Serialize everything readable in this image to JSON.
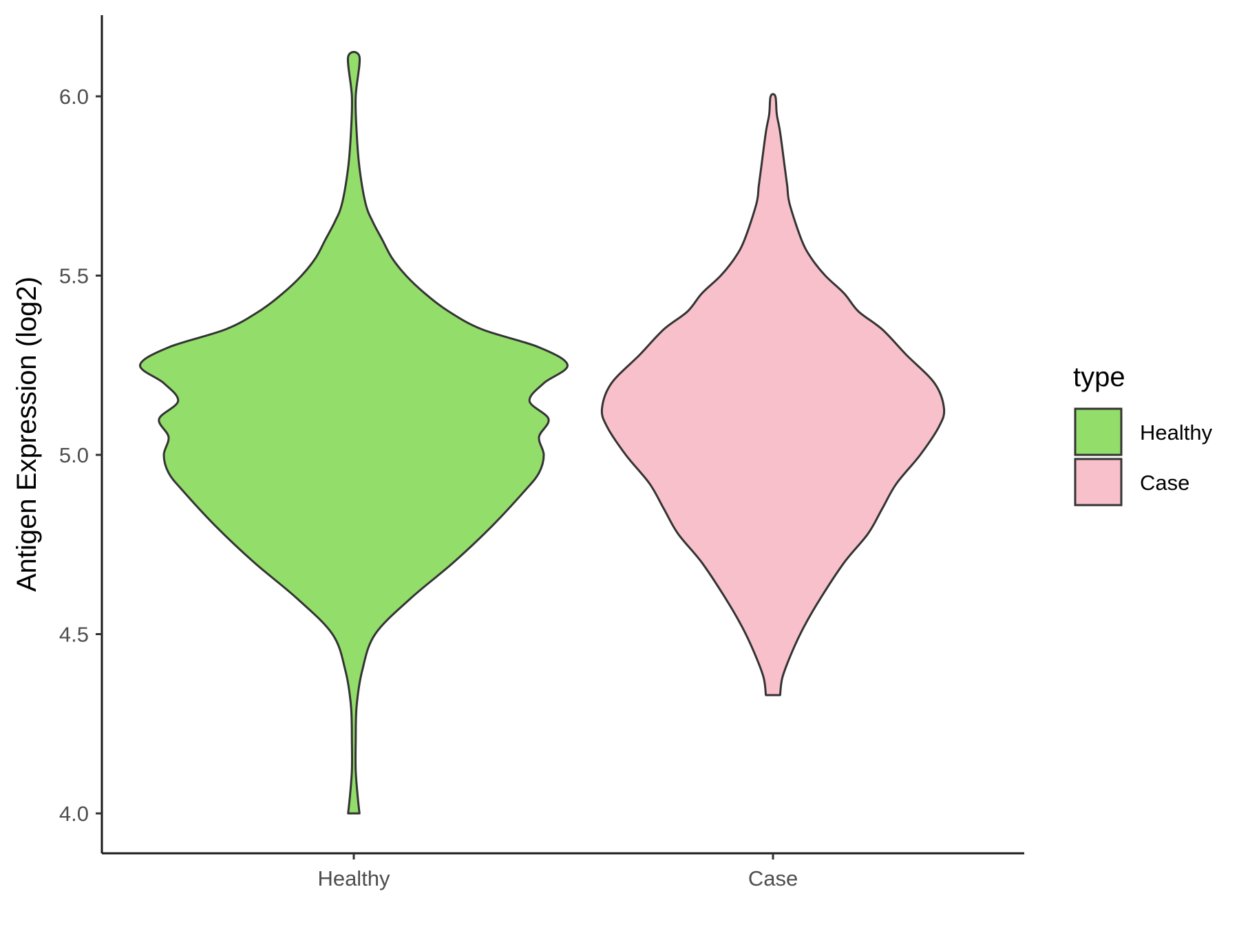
{
  "chart_data": {
    "type": "violin",
    "title": "",
    "xlabel": "",
    "ylabel": "Antigen Expression (log2)",
    "ylim": [
      3.9,
      6.22
    ],
    "yticks": [
      "4.0",
      "4.5",
      "5.0",
      "5.5",
      "6.0"
    ],
    "ytick_values": [
      4.0,
      4.5,
      5.0,
      5.5,
      6.0
    ],
    "categories": [
      "Healthy",
      "Case"
    ],
    "grid": false,
    "legend": {
      "title": "type",
      "position": "right",
      "entries": [
        "Healthy",
        "Case"
      ]
    },
    "colors": {
      "Healthy": "#93dd6a",
      "Case": "#f8c0cb",
      "outline": "#333333"
    },
    "violins": [
      {
        "name": "Healthy",
        "min": 4.0,
        "max": 6.11,
        "profile_y": [
          4.0,
          4.05,
          4.12,
          4.2,
          4.3,
          4.4,
          4.5,
          4.6,
          4.7,
          4.8,
          4.9,
          4.95,
          5.0,
          5.05,
          5.1,
          5.15,
          5.2,
          5.25,
          5.3,
          5.35,
          5.4,
          5.45,
          5.5,
          5.55,
          5.6,
          5.65,
          5.7,
          5.8,
          5.9,
          6.0,
          6.11
        ],
        "profile_halfwidth": [
          0.012,
          0.008,
          0.004,
          0.004,
          0.006,
          0.018,
          0.045,
          0.12,
          0.21,
          0.29,
          0.36,
          0.39,
          0.4,
          0.39,
          0.41,
          0.37,
          0.4,
          0.45,
          0.39,
          0.27,
          0.2,
          0.15,
          0.11,
          0.08,
          0.06,
          0.04,
          0.025,
          0.012,
          0.006,
          0.004,
          0.012
        ]
      },
      {
        "name": "Case",
        "min": 4.33,
        "max": 6.0,
        "profile_y": [
          4.33,
          4.38,
          4.45,
          4.52,
          4.6,
          4.7,
          4.78,
          4.85,
          4.92,
          5.0,
          5.08,
          5.13,
          5.2,
          5.28,
          5.35,
          5.4,
          5.45,
          5.5,
          5.55,
          5.6,
          5.7,
          5.75,
          5.8,
          5.9,
          5.95,
          6.0
        ],
        "profile_halfwidth": [
          0.015,
          0.02,
          0.04,
          0.065,
          0.1,
          0.15,
          0.2,
          0.23,
          0.26,
          0.31,
          0.35,
          0.36,
          0.34,
          0.28,
          0.23,
          0.18,
          0.15,
          0.11,
          0.08,
          0.06,
          0.035,
          0.03,
          0.025,
          0.015,
          0.008,
          0.005
        ]
      }
    ]
  }
}
